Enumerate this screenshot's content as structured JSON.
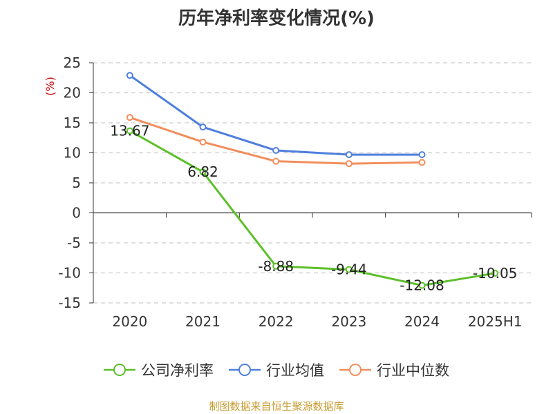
{
  "chart_data": {
    "type": "line",
    "title": "历年净利率变化情况(%)",
    "ylabel": "(%)",
    "xlabel": "",
    "categories": [
      "2020",
      "2021",
      "2022",
      "2023",
      "2024",
      "2025H1"
    ],
    "ylim": [
      -15,
      25
    ],
    "yticks": [
      25,
      20,
      15,
      10,
      5,
      0,
      -5,
      -10,
      -15
    ],
    "grid": "horizontal dashed",
    "legend_position": "bottom",
    "series": [
      {
        "name": "公司净利率",
        "color": "#5cbf2a",
        "values": [
          13.67,
          6.82,
          -8.88,
          -9.44,
          -12.08,
          -10.05
        ],
        "labels": [
          "13.67",
          "6.82",
          "-8.88",
          "-9.44",
          "-12.08",
          "-10.05"
        ]
      },
      {
        "name": "行业均值",
        "color": "#4e7fdd",
        "values": [
          22.9,
          14.3,
          10.4,
          9.7,
          9.7,
          null
        ]
      },
      {
        "name": "行业中位数",
        "color": "#f28e5c",
        "values": [
          15.9,
          11.8,
          8.6,
          8.2,
          8.4,
          null
        ]
      }
    ]
  },
  "footer": "制图数据来自恒生聚源数据库"
}
